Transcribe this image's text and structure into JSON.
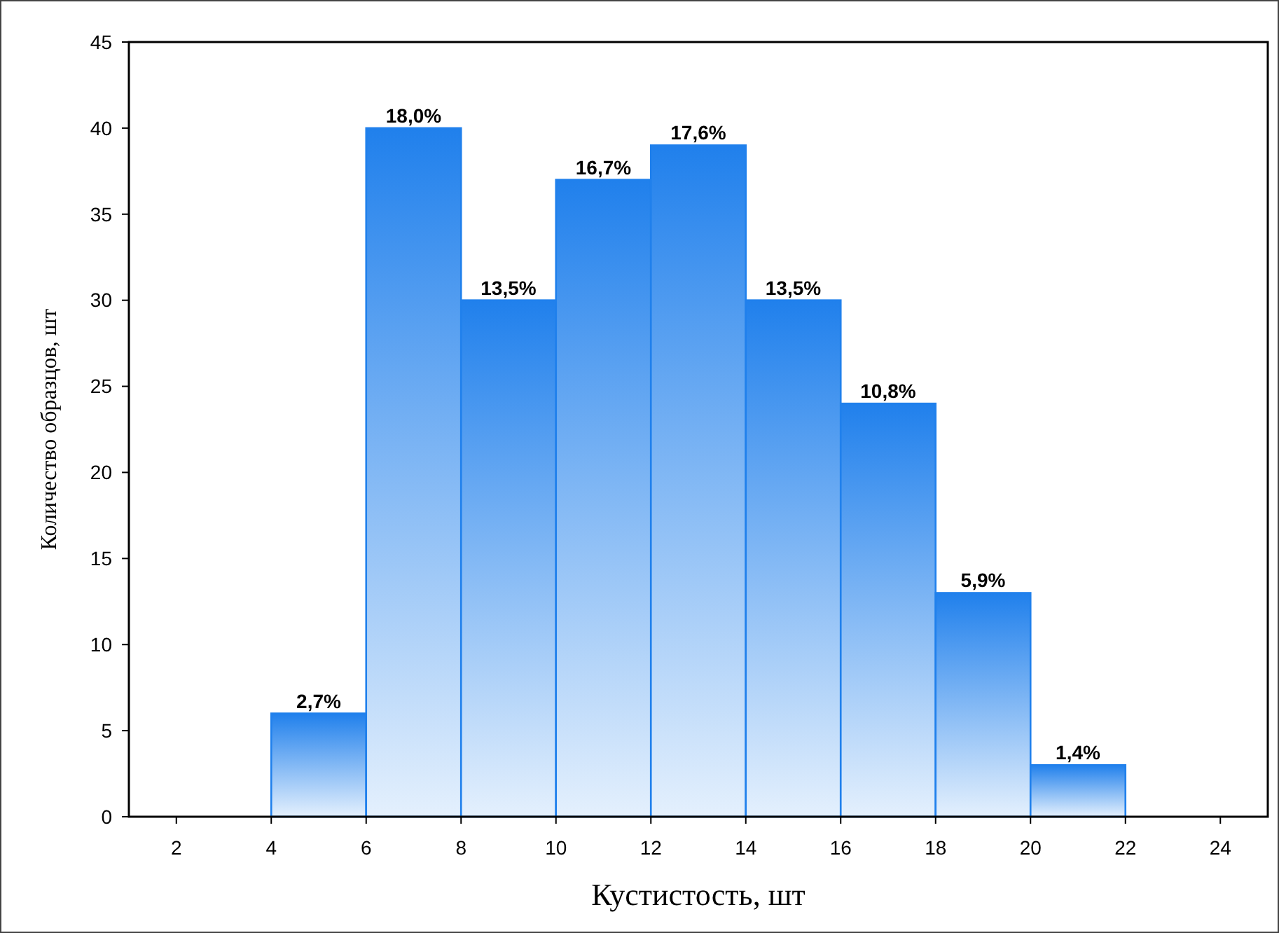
{
  "chart_data": {
    "type": "histogram",
    "xlabel": "Кустистость, шт",
    "ylabel": "Количество образцов, шт",
    "bins": [
      4,
      6,
      8,
      10,
      12,
      14,
      16,
      18,
      20,
      22
    ],
    "values": [
      6,
      40,
      30,
      37,
      39,
      30,
      24,
      13,
      3
    ],
    "annotations": [
      {
        "text": "2,7%",
        "x": 5,
        "y": 6
      },
      {
        "text": "18,0%",
        "x": 7,
        "y": 40
      },
      {
        "text": "13,5%",
        "x": 9,
        "y": 30
      },
      {
        "text": "16,7%",
        "x": 11,
        "y": 37
      },
      {
        "text": "17,6%",
        "x": 13,
        "y": 39
      },
      {
        "text": "13,5%",
        "x": 15,
        "y": 30
      },
      {
        "text": "10,8%",
        "x": 17,
        "y": 24
      },
      {
        "text": "5,9%",
        "x": 19,
        "y": 13
      },
      {
        "text": "1,4%",
        "x": 21,
        "y": 3
      }
    ],
    "color": "#2080ec",
    "xlim": [
      1,
      25
    ],
    "xticks": [
      2,
      4,
      6,
      8,
      10,
      12,
      14,
      16,
      18,
      20,
      22,
      24
    ],
    "ylim": [
      0,
      45
    ],
    "yticks": [
      0,
      5,
      10,
      15,
      20,
      25,
      30,
      35,
      40,
      45
    ],
    "grid": false
  }
}
